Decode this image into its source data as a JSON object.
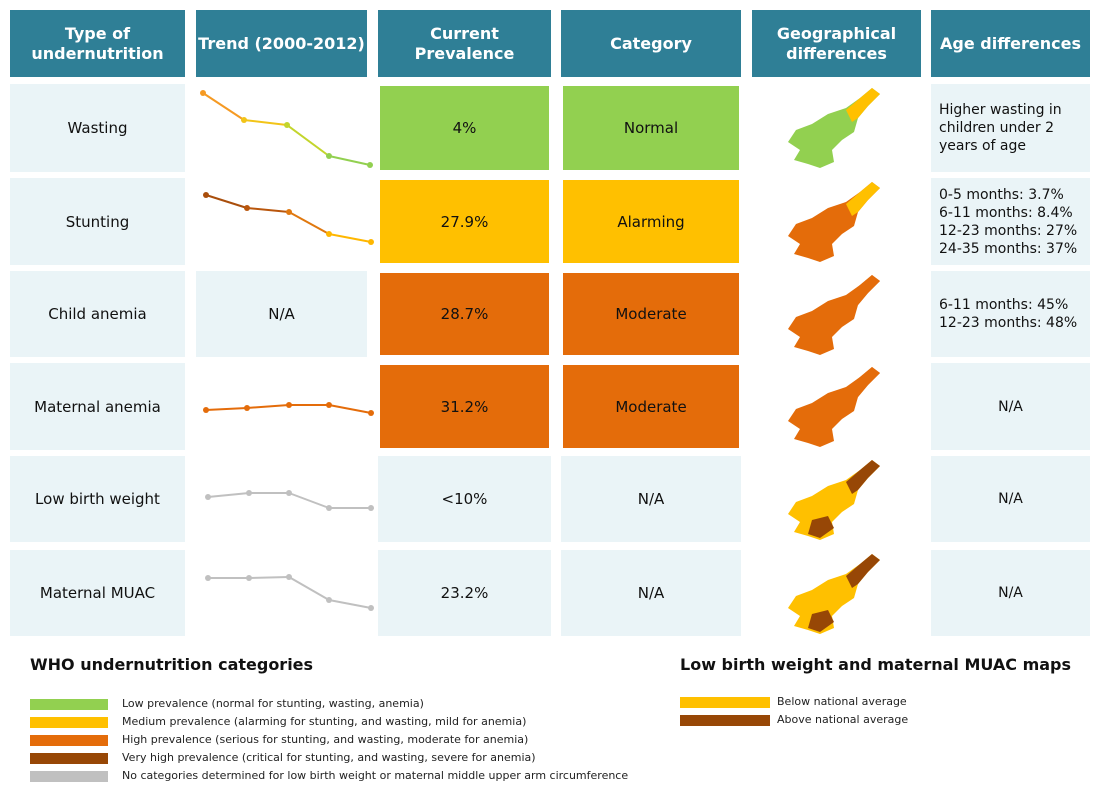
{
  "header": {
    "columns": [
      "Type of undernutrition",
      "Trend (2000-2012)",
      "Current Prevalence",
      "Category",
      "Geographical differences",
      "Age differences"
    ]
  },
  "table": {
    "rows": [
      {
        "type": "Wasting",
        "prevalence": "4%",
        "category": "Normal",
        "color": "#92d050",
        "age": [
          "Higher wasting in children under 2 years of age"
        ]
      },
      {
        "type": "Stunting",
        "prevalence": "27.9%",
        "category": "Alarming",
        "color": "#ffc000",
        "age": [
          "0-5 months: 3.7%",
          "6-11 months: 8.4%",
          "12-23 months: 27%",
          "24-35 months: 37%"
        ]
      },
      {
        "type": "Child anemia",
        "trend": "N/A",
        "prevalence": "28.7%",
        "category": "Moderate",
        "color": "#e46c0a",
        "age": [
          "6-11 months: 45%",
          "12-23 months: 48%"
        ]
      },
      {
        "type": "Maternal anemia",
        "prevalence": "31.2%",
        "category": "Moderate",
        "color": "#e46c0a",
        "age": [
          "N/A"
        ]
      },
      {
        "type": "Low birth weight",
        "prevalence": "<10%",
        "category": "N/A",
        "age": [
          "N/A"
        ]
      },
      {
        "type": "Maternal MUAC",
        "prevalence": "23.2%",
        "category": "N/A",
        "age": [
          "N/A"
        ]
      }
    ]
  },
  "legend": {
    "who": {
      "title": "WHO undernutrition categories",
      "items": [
        {
          "label": "Low prevalence (normal for stunting, wasting, anemia)",
          "color": "#92d050"
        },
        {
          "label": "Medium prevalence (alarming for stunting, and wasting, mild for anemia)",
          "color": "#ffc000"
        },
        {
          "label": "High prevalence (serious for stunting, and wasting, moderate for anemia)",
          "color": "#e46c0a"
        },
        {
          "label": "Very high prevalence (critical for stunting, and wasting, severe for anemia)",
          "color": "#974706"
        },
        {
          "label": "No categories determined for low birth weight or maternal middle upper arm circumference",
          "color": "#c0c0c0"
        }
      ]
    },
    "maps": {
      "title": "Low birth weight and maternal MUAC maps",
      "items": [
        {
          "label": "Below national average",
          "color": "#ffc000"
        },
        {
          "label": "Above national average",
          "color": "#974706"
        }
      ]
    }
  }
}
